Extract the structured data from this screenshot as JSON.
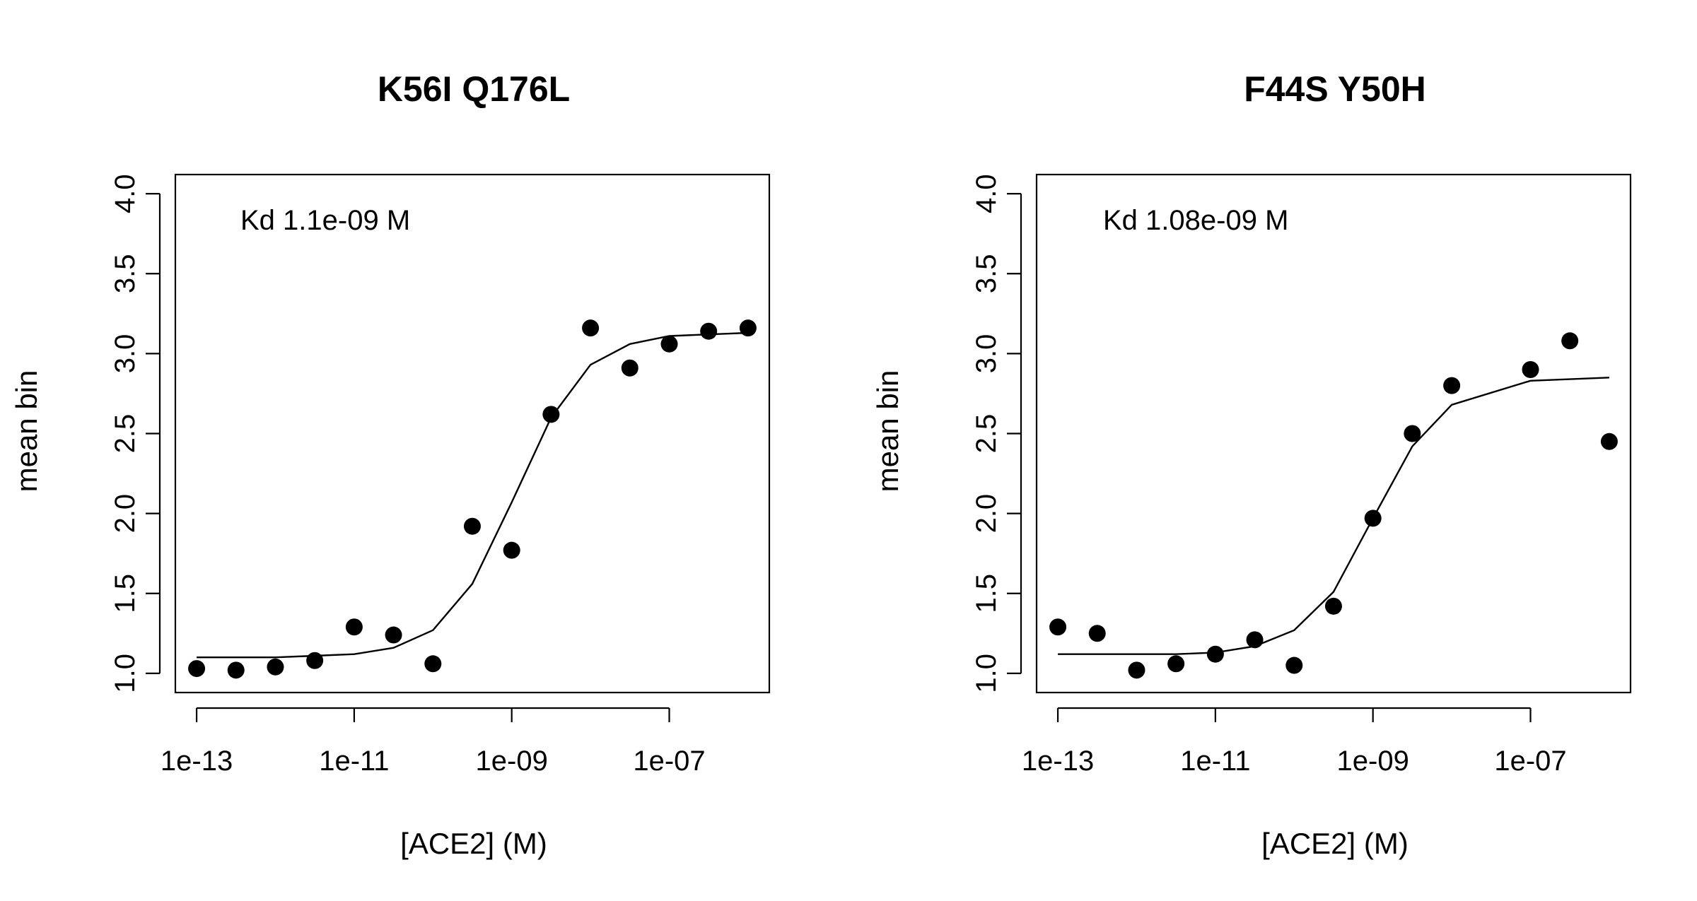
{
  "chart_data": [
    {
      "type": "scatter",
      "title": "K56I Q176L",
      "xlabel": "[ACE2] (M)",
      "ylabel": "mean bin",
      "x_scale": "log10",
      "annotation": "Kd 1.1e-09 M",
      "x_ticks": [
        "1e-13",
        "1e-11",
        "1e-09",
        "1e-07"
      ],
      "y_ticks": [
        "1.0",
        "1.5",
        "2.0",
        "2.5",
        "3.0",
        "3.5",
        "4.0"
      ],
      "ylim": [
        1.0,
        4.0
      ],
      "grid": false,
      "points": {
        "x": [
          1e-13,
          3.16e-13,
          1e-12,
          3.16e-12,
          1e-11,
          3.16e-11,
          1e-10,
          3.16e-10,
          1e-09,
          3.16e-09,
          1e-08,
          3.16e-08,
          1e-07,
          3.16e-07,
          1e-06
        ],
        "y": [
          1.03,
          1.02,
          1.04,
          1.08,
          1.29,
          1.24,
          1.06,
          1.92,
          1.77,
          2.62,
          3.16,
          2.91,
          3.06,
          3.14,
          3.16
        ]
      },
      "fit": {
        "x": [
          1e-13,
          3.16e-13,
          1e-12,
          3.16e-12,
          1e-11,
          3.16e-11,
          1e-10,
          3.16e-10,
          1e-09,
          3.16e-09,
          1e-08,
          3.16e-08,
          1e-07,
          3.16e-07,
          1e-06
        ],
        "y": [
          1.1,
          1.1,
          1.1,
          1.11,
          1.12,
          1.16,
          1.27,
          1.56,
          2.07,
          2.6,
          2.93,
          3.06,
          3.11,
          3.12,
          3.13
        ]
      }
    },
    {
      "type": "scatter",
      "title": "F44S Y50H",
      "xlabel": "[ACE2] (M)",
      "ylabel": "mean bin",
      "x_scale": "log10",
      "annotation": "Kd 1.08e-09 M",
      "x_ticks": [
        "1e-13",
        "1e-11",
        "1e-09",
        "1e-07"
      ],
      "y_ticks": [
        "1.0",
        "1.5",
        "2.0",
        "2.5",
        "3.0",
        "3.5",
        "4.0"
      ],
      "ylim": [
        1.0,
        4.0
      ],
      "grid": false,
      "points": {
        "x": [
          1e-13,
          3.16e-13,
          1e-12,
          3.16e-12,
          1e-11,
          3.16e-11,
          1e-10,
          3.16e-10,
          1e-09,
          3.16e-09,
          1e-08,
          1e-07,
          3.16e-07,
          1e-06
        ],
        "y": [
          1.29,
          1.25,
          1.02,
          1.06,
          1.12,
          1.21,
          1.05,
          1.42,
          1.97,
          2.5,
          2.8,
          2.9,
          3.08,
          2.45
        ]
      },
      "fit": {
        "x": [
          1e-13,
          3.16e-13,
          1e-12,
          3.16e-12,
          1e-11,
          3.16e-11,
          1e-10,
          3.16e-10,
          1e-09,
          3.16e-09,
          1e-08,
          1e-07,
          3.16e-07,
          1e-06
        ],
        "y": [
          1.12,
          1.12,
          1.12,
          1.12,
          1.13,
          1.17,
          1.27,
          1.51,
          1.97,
          2.42,
          2.68,
          2.83,
          2.84,
          2.85
        ]
      }
    }
  ]
}
